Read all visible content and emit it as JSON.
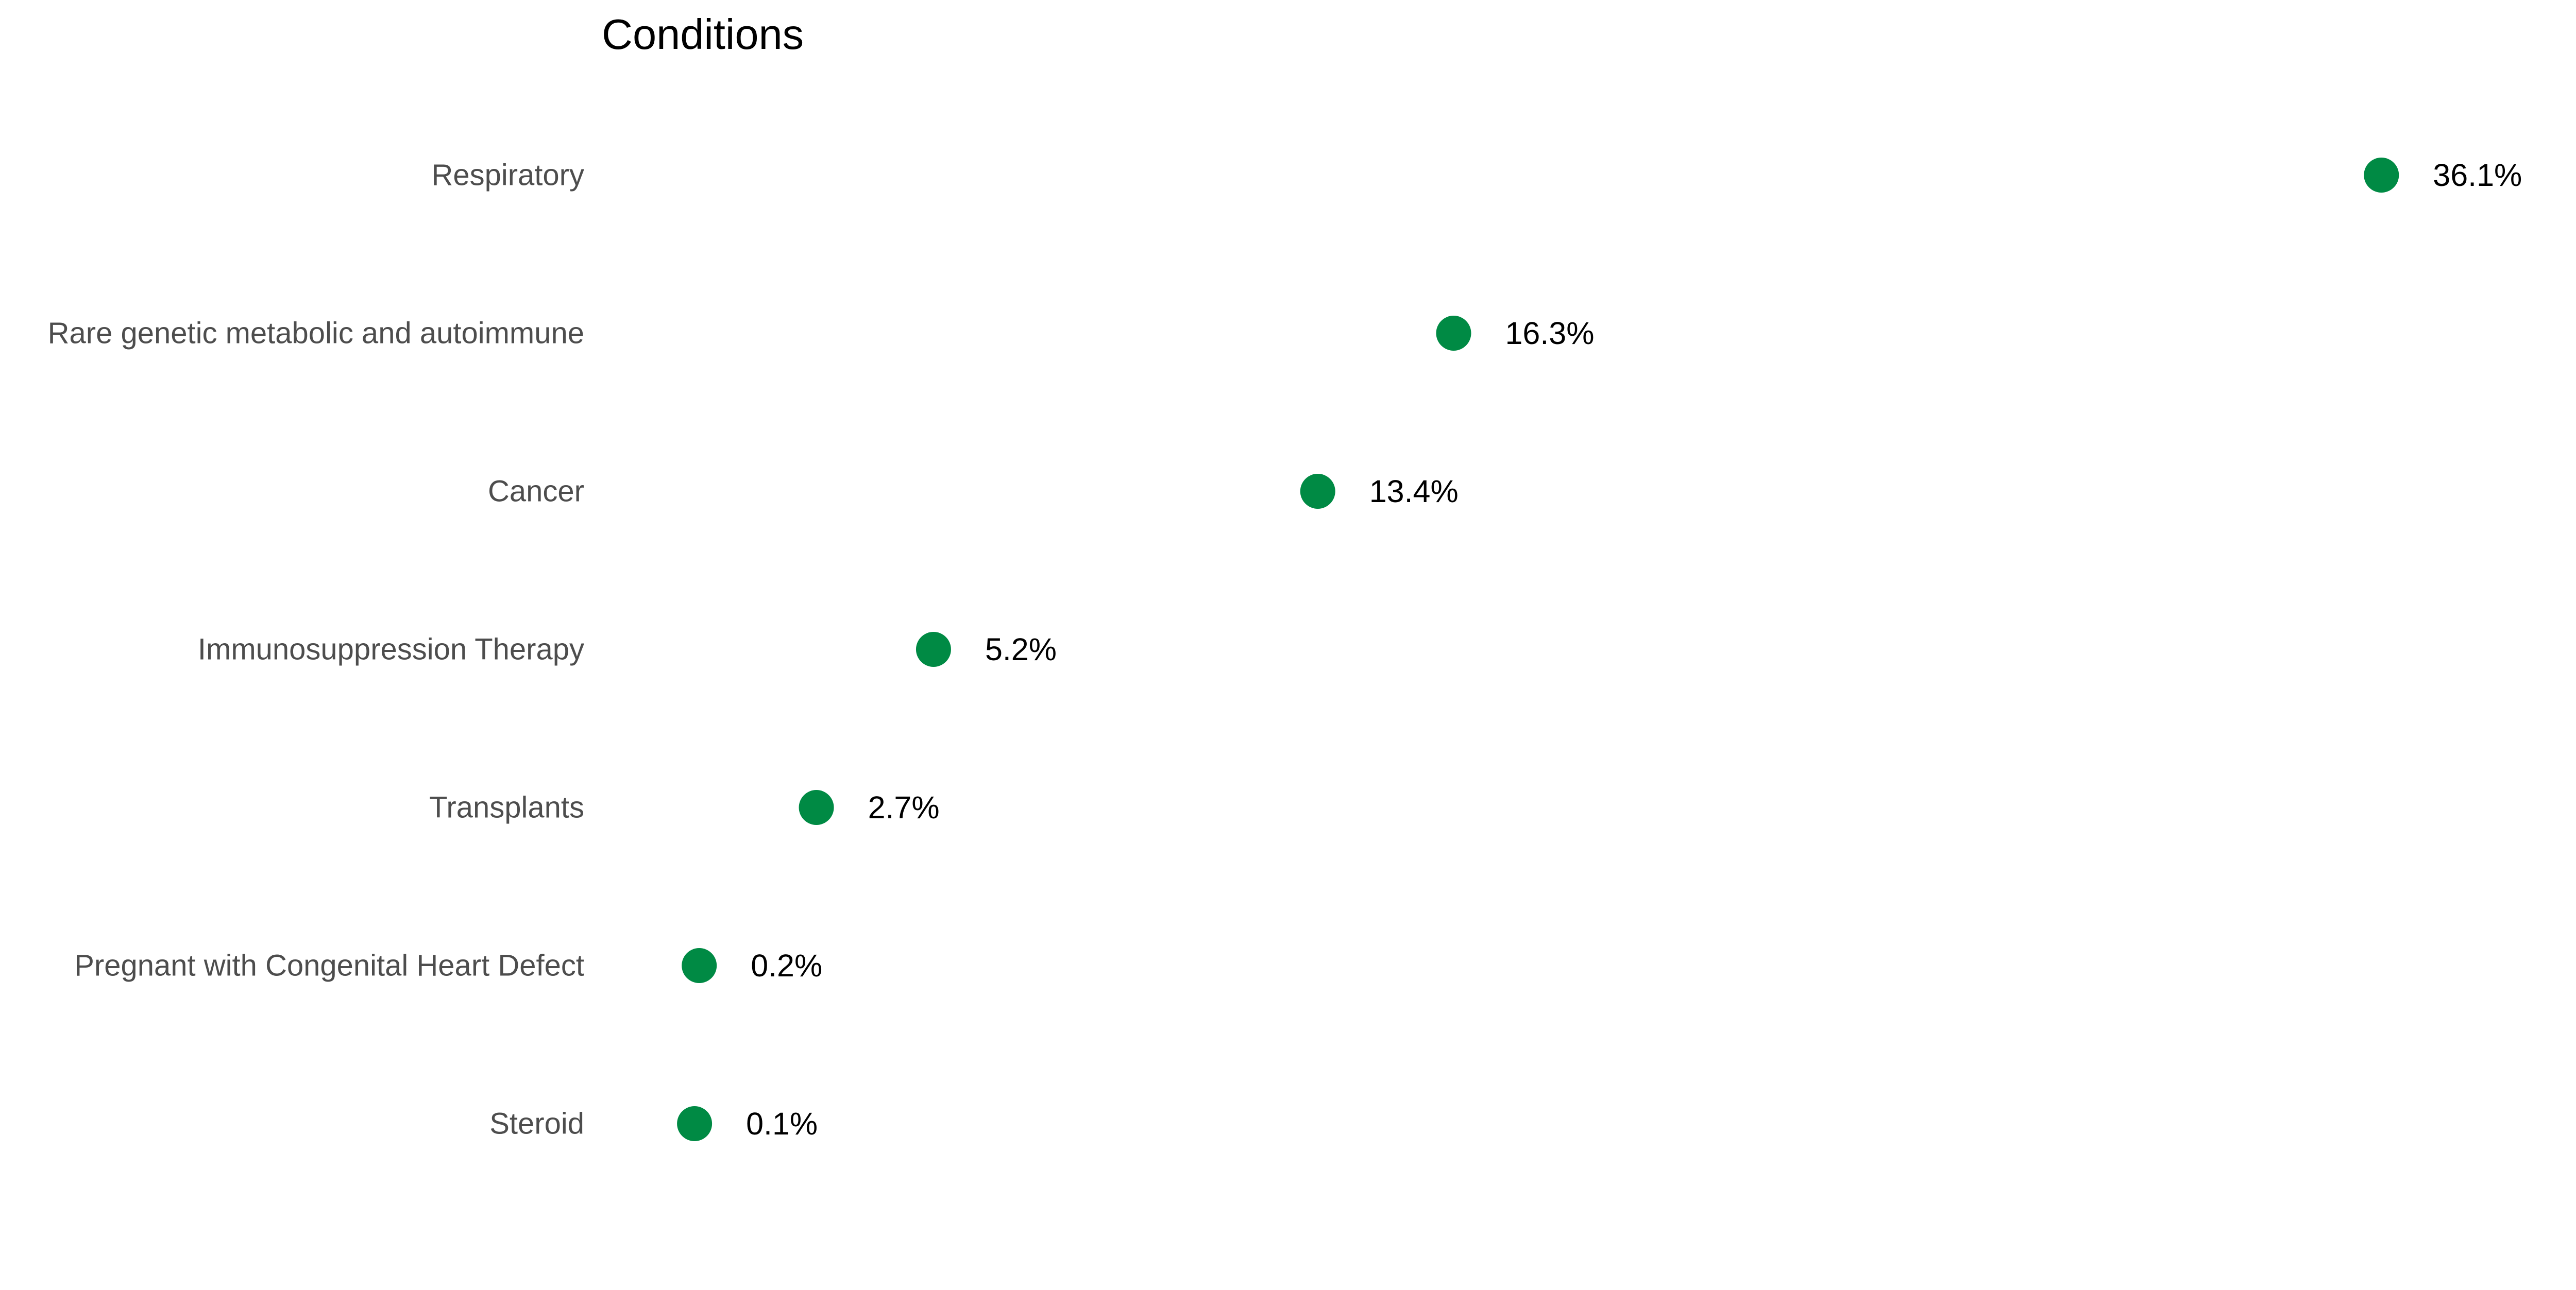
{
  "chart_data": {
    "type": "scatter",
    "orientation": "horizontal",
    "title": "Conditions",
    "xlabel": "",
    "ylabel": "",
    "categories": [
      "Respiratory",
      "Rare genetic metabolic and autoimmune",
      "Cancer",
      "Immunosuppression Therapy",
      "Transplants",
      "Pregnant with Congenital Heart Defect",
      "Steroid"
    ],
    "values": [
      36.1,
      16.3,
      13.4,
      5.2,
      2.7,
      0.2,
      0.1
    ],
    "value_labels": [
      "36.1%",
      "16.3%",
      "13.4%",
      "5.2%",
      "2.7%",
      "0.2%",
      "0.1%"
    ],
    "x_axis_visible": false,
    "grid": false,
    "legend": "none",
    "point_color": "#008A44"
  }
}
